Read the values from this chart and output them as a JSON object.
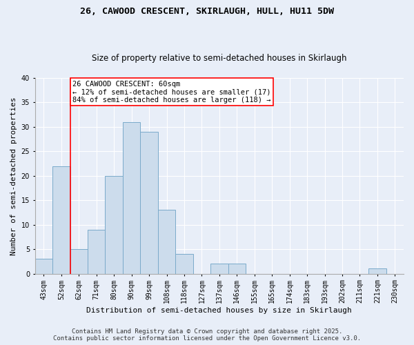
{
  "title_line1": "26, CAWOOD CRESCENT, SKIRLAUGH, HULL, HU11 5DW",
  "title_line2": "Size of property relative to semi-detached houses in Skirlaugh",
  "xlabel": "Distribution of semi-detached houses by size in Skirlaugh",
  "ylabel": "Number of semi-detached properties",
  "categories": [
    "43sqm",
    "52sqm",
    "62sqm",
    "71sqm",
    "80sqm",
    "90sqm",
    "99sqm",
    "108sqm",
    "118sqm",
    "127sqm",
    "137sqm",
    "146sqm",
    "155sqm",
    "165sqm",
    "174sqm",
    "183sqm",
    "193sqm",
    "202sqm",
    "211sqm",
    "221sqm",
    "230sqm"
  ],
  "values": [
    3,
    22,
    5,
    9,
    20,
    31,
    29,
    13,
    4,
    0,
    2,
    2,
    0,
    0,
    0,
    0,
    0,
    0,
    0,
    1,
    0
  ],
  "bar_color": "#ccdcec",
  "bar_edge_color": "#7aaaca",
  "property_line_x": 1.5,
  "property_label": "26 CAWOOD CRESCENT: 60sqm",
  "smaller_pct": "12%",
  "smaller_count": 17,
  "larger_pct": "84%",
  "larger_count": 118,
  "annotation_box_color": "white",
  "annotation_box_edge": "red",
  "vertical_line_color": "red",
  "background_color": "#e8eef8",
  "plot_background": "#e8eef8",
  "ylim": [
    0,
    40
  ],
  "yticks": [
    0,
    5,
    10,
    15,
    20,
    25,
    30,
    35,
    40
  ],
  "footer_line1": "Contains HM Land Registry data © Crown copyright and database right 2025.",
  "footer_line2": "Contains public sector information licensed under the Open Government Licence v3.0.",
  "title_fontsize": 9.5,
  "subtitle_fontsize": 8.5,
  "axis_label_fontsize": 8,
  "tick_fontsize": 7,
  "annotation_fontsize": 7.5,
  "footer_fontsize": 6.5
}
